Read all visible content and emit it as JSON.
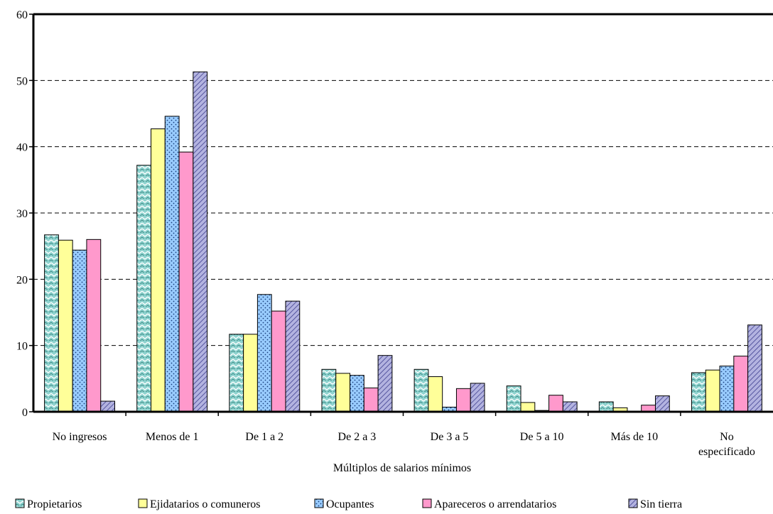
{
  "chart_data": {
    "type": "bar",
    "title": "",
    "xlabel": "Múltiplos de salarios mínimos",
    "ylabel": "",
    "ylim": [
      0,
      60
    ],
    "yticks": [
      0,
      10,
      20,
      30,
      40,
      50,
      60
    ],
    "grid": true,
    "legend_position": "bottom",
    "categories": [
      [
        "No ingresos"
      ],
      [
        "Menos de 1"
      ],
      [
        "De 1 a 2"
      ],
      [
        "De 2 a 3"
      ],
      [
        "De 3 a 5"
      ],
      [
        "De 5 a 10"
      ],
      [
        "Más de 10"
      ],
      [
        "No",
        "especificado"
      ]
    ],
    "series": [
      {
        "name": "Propietarios",
        "color": "#8fd3cf",
        "pattern": "zigzag",
        "values": [
          26.7,
          37.2,
          11.7,
          6.4,
          6.4,
          3.9,
          1.5,
          5.9
        ]
      },
      {
        "name": "Ejidatarios o comuneros",
        "color": "#ffff99",
        "pattern": "solid",
        "values": [
          25.9,
          42.7,
          11.7,
          5.8,
          5.3,
          1.4,
          0.6,
          6.3
        ]
      },
      {
        "name": "Ocupantes",
        "color": "#99ccff",
        "pattern": "dots",
        "values": [
          24.4,
          44.6,
          17.7,
          5.5,
          0.7,
          0.2,
          0.1,
          6.9
        ]
      },
      {
        "name": "Apareceros o arrendatarios",
        "color": "#ff99cc",
        "pattern": "solid",
        "values": [
          26.0,
          39.2,
          15.2,
          3.6,
          3.5,
          2.5,
          1.0,
          8.4
        ]
      },
      {
        "name": "Sin tierra",
        "color": "#9999cc",
        "pattern": "diagonal",
        "values": [
          1.6,
          51.3,
          16.7,
          8.5,
          4.3,
          1.5,
          2.4,
          13.1
        ]
      }
    ]
  }
}
